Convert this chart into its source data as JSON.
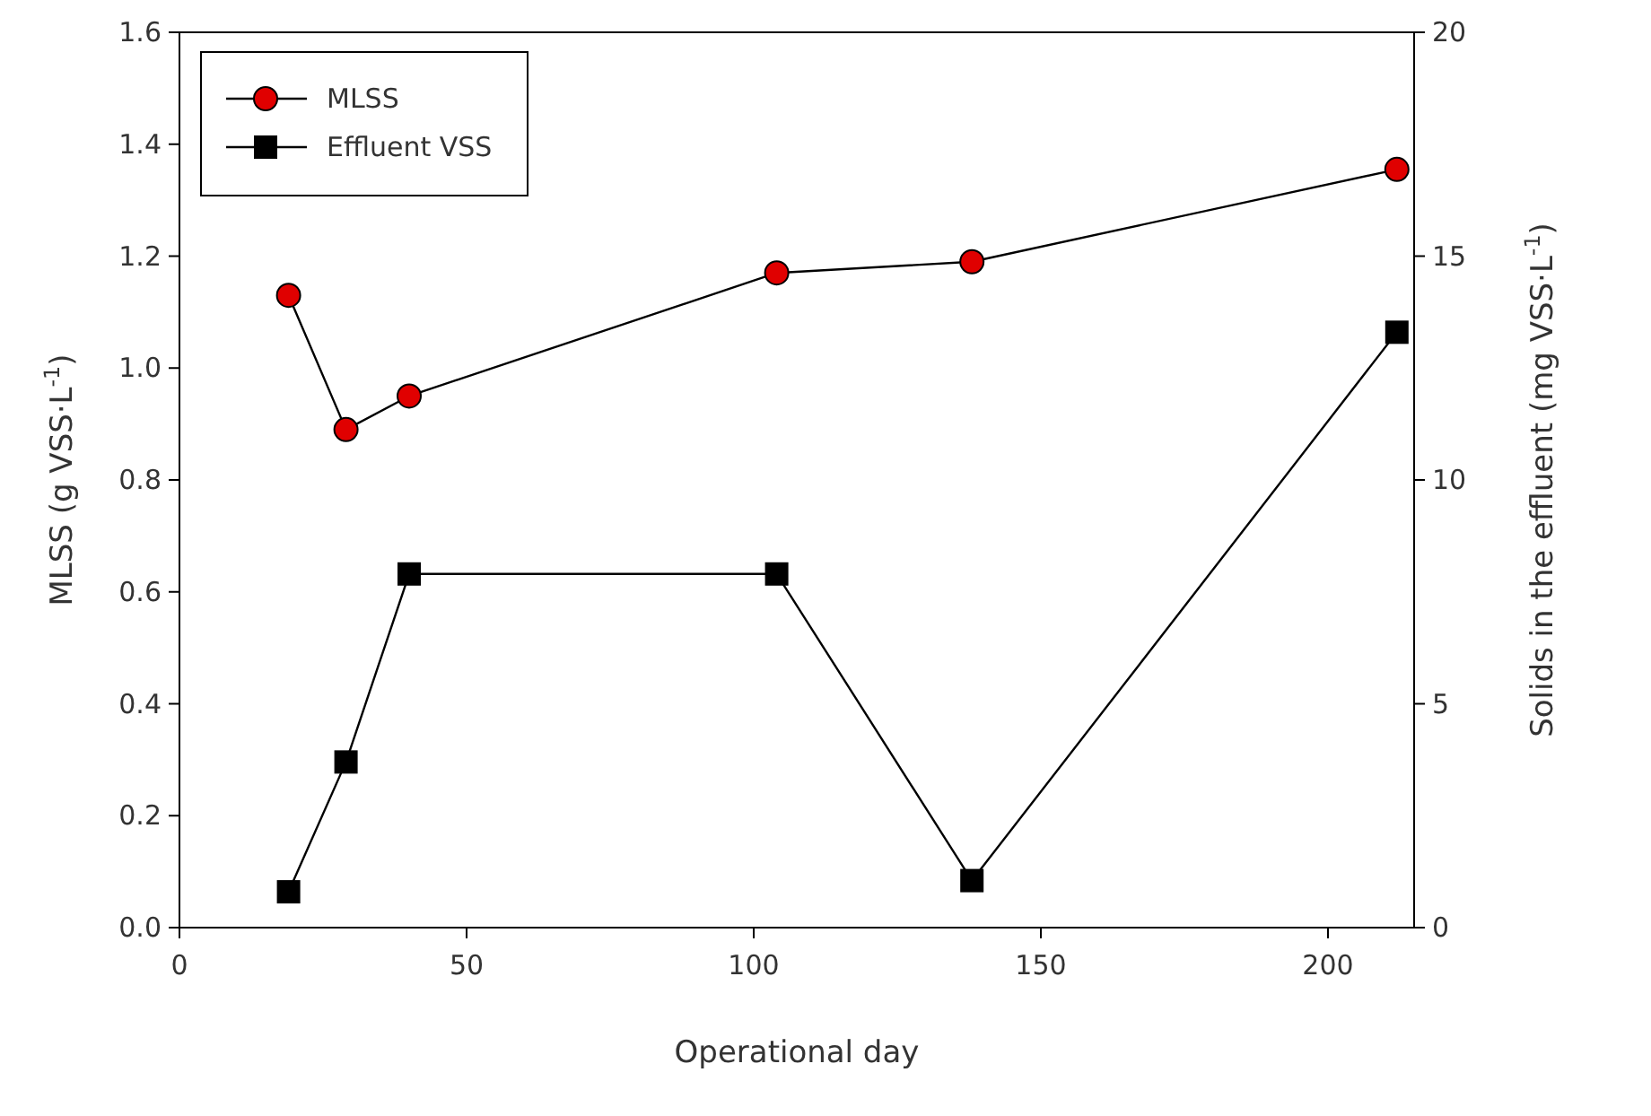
{
  "chart_data": {
    "type": "line",
    "xlabel": "Operational day",
    "ylabel": "MLSS (g VSS·L$^{-1}$)",
    "y2label": "Solids in the effluent (mg VSS·L$^{-1}$)",
    "x": [
      19,
      29,
      40,
      104,
      138,
      212
    ],
    "series": [
      {
        "name": "MLSS",
        "color": "#e00000",
        "marker": "circle",
        "values": [
          1.13,
          0.89,
          0.95,
          1.17,
          1.19,
          1.355
        ]
      },
      {
        "name": "Effluent VSS",
        "color": "#000000",
        "marker": "square",
        "axis": "y2",
        "values": [
          0.8,
          3.7,
          7.9,
          7.9,
          1.05,
          13.3
        ]
      }
    ],
    "xlim": [
      0,
      215
    ],
    "xticks": [
      0,
      50,
      100,
      150,
      200
    ],
    "ylim": [
      0,
      1.6
    ],
    "yticks": [
      {
        "value": 0,
        "label": "0.0"
      },
      {
        "value": 0.2,
        "label": "0.2"
      },
      {
        "value": 0.4,
        "label": "0.4"
      },
      {
        "value": 0.6,
        "label": "0.6"
      },
      {
        "value": 0.8,
        "label": "0.8"
      },
      {
        "value": 1,
        "label": "1.0"
      },
      {
        "value": 1.2,
        "label": "1.2"
      },
      {
        "value": 1.4,
        "label": "1.4"
      },
      {
        "value": 1.6,
        "label": "1.6"
      }
    ],
    "y2lim": [
      0,
      20
    ],
    "y2ticks": [
      0,
      5,
      10,
      15,
      20
    ],
    "grid": false,
    "legend": "top left",
    "line_style": "solid"
  }
}
